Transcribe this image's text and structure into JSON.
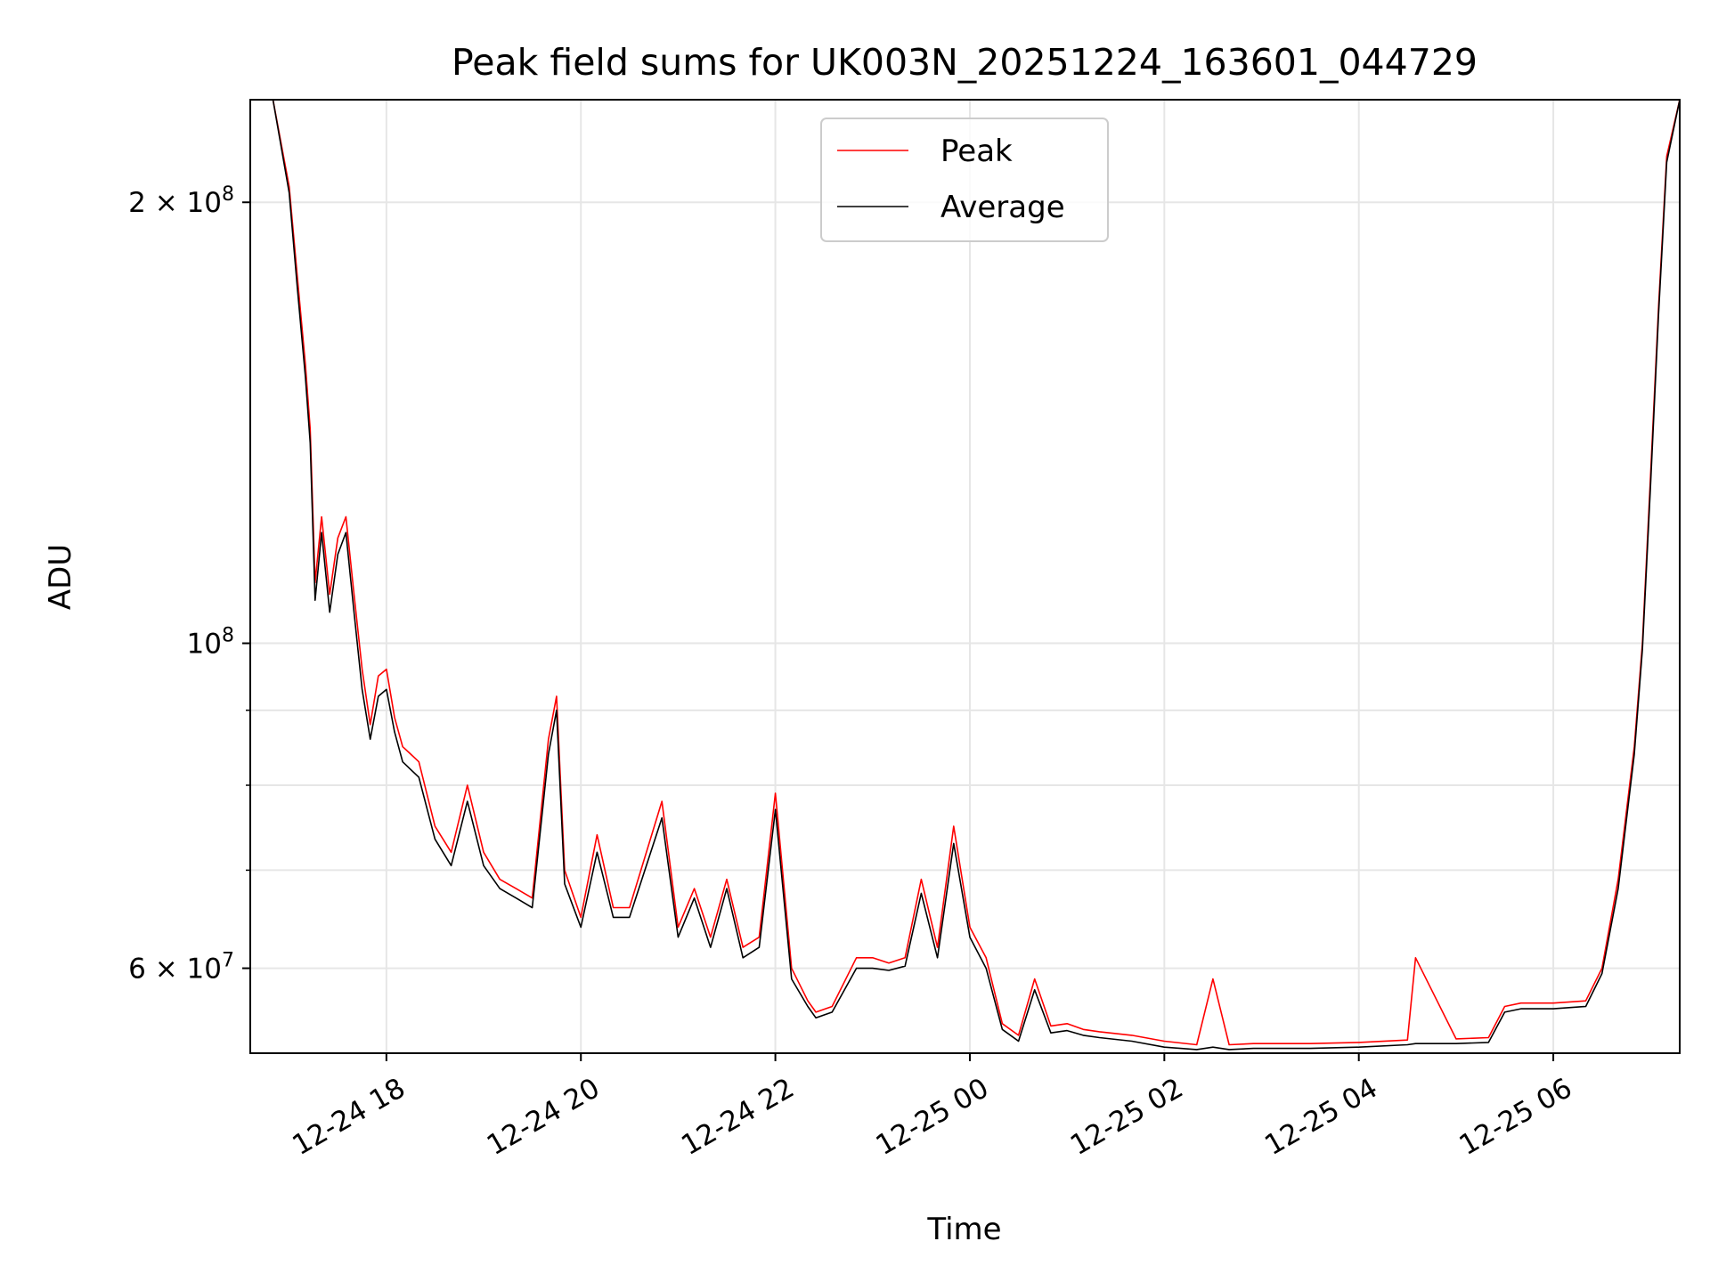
{
  "chart_data": {
    "type": "line",
    "title": "Peak field sums for UK003N_20251224_163601_044729",
    "xlabel": "Time",
    "ylabel": "ADU",
    "x_scale": "time",
    "y_scale": "log",
    "xlim": [
      "2025-12-24 16:36",
      "2025-12-25 07:18"
    ],
    "ylim": [
      52500000,
      235000000
    ],
    "grid": true,
    "legend_position": "upper-center",
    "x_ticks": [
      {
        "value": "2025-12-24 18:00",
        "label": "12-24 18"
      },
      {
        "value": "2025-12-24 20:00",
        "label": "12-24 20"
      },
      {
        "value": "2025-12-24 22:00",
        "label": "12-24 22"
      },
      {
        "value": "2025-12-25 00:00",
        "label": "12-25 00"
      },
      {
        "value": "2025-12-25 02:00",
        "label": "12-25 02"
      },
      {
        "value": "2025-12-25 04:00",
        "label": "12-25 04"
      },
      {
        "value": "2025-12-25 06:00",
        "label": "12-25 06"
      }
    ],
    "y_major_ticks": [
      {
        "value": 200000000,
        "mantissa": "2",
        "exponent": "8"
      },
      {
        "value": 100000000,
        "mantissa": "",
        "exponent": "8"
      },
      {
        "value": 60000000,
        "mantissa": "6",
        "exponent": "7"
      }
    ],
    "y_minor_ticks": [
      70000000,
      80000000,
      90000000
    ],
    "series": [
      {
        "name": "Peak",
        "color": "#ff0000",
        "x": [
          "2025-12-24 16:36",
          "2025-12-24 16:50",
          "2025-12-24 17:00",
          "2025-12-24 17:05",
          "2025-12-24 17:10",
          "2025-12-24 17:13",
          "2025-12-24 17:16",
          "2025-12-24 17:20",
          "2025-12-24 17:25",
          "2025-12-24 17:30",
          "2025-12-24 17:35",
          "2025-12-24 17:40",
          "2025-12-24 17:45",
          "2025-12-24 17:50",
          "2025-12-24 17:55",
          "2025-12-24 18:00",
          "2025-12-24 18:05",
          "2025-12-24 18:10",
          "2025-12-24 18:15",
          "2025-12-24 18:20",
          "2025-12-24 18:30",
          "2025-12-24 18:40",
          "2025-12-24 18:50",
          "2025-12-24 19:00",
          "2025-12-24 19:10",
          "2025-12-24 19:20",
          "2025-12-24 19:30",
          "2025-12-24 19:40",
          "2025-12-24 19:45",
          "2025-12-24 19:50",
          "2025-12-24 20:00",
          "2025-12-24 20:10",
          "2025-12-24 20:20",
          "2025-12-24 20:30",
          "2025-12-24 20:50",
          "2025-12-24 21:00",
          "2025-12-24 21:10",
          "2025-12-24 21:20",
          "2025-12-24 21:30",
          "2025-12-24 21:40",
          "2025-12-24 21:50",
          "2025-12-24 22:00",
          "2025-12-24 22:10",
          "2025-12-24 22:20",
          "2025-12-24 22:25",
          "2025-12-24 22:35",
          "2025-12-24 22:50",
          "2025-12-24 23:00",
          "2025-12-24 23:10",
          "2025-12-24 23:20",
          "2025-12-24 23:30",
          "2025-12-24 23:40",
          "2025-12-24 23:50",
          "2025-12-25 00:00",
          "2025-12-25 00:10",
          "2025-12-25 00:20",
          "2025-12-25 00:30",
          "2025-12-25 00:40",
          "2025-12-25 00:50",
          "2025-12-25 01:00",
          "2025-12-25 01:10",
          "2025-12-25 01:20",
          "2025-12-25 01:40",
          "2025-12-25 02:00",
          "2025-12-25 02:20",
          "2025-12-25 02:30",
          "2025-12-25 02:40",
          "2025-12-25 02:55",
          "2025-12-25 03:10",
          "2025-12-25 03:30",
          "2025-12-25 04:00",
          "2025-12-25 04:30",
          "2025-12-25 04:35",
          "2025-12-25 05:00",
          "2025-12-25 05:20",
          "2025-12-25 05:30",
          "2025-12-25 05:40",
          "2025-12-25 06:00",
          "2025-12-25 06:20",
          "2025-12-25 06:30",
          "2025-12-25 06:40",
          "2025-12-25 06:50",
          "2025-12-25 06:55",
          "2025-12-25 07:00",
          "2025-12-25 07:05",
          "2025-12-25 07:10",
          "2025-12-25 07:18"
        ],
        "y": [
          235000000,
          235000000,
          205000000,
          178000000,
          155000000,
          140000000,
          110000000,
          122000000,
          108000000,
          118000000,
          122000000,
          108000000,
          96000000,
          88000000,
          95000000,
          96000000,
          89000000,
          85000000,
          84000000,
          83000000,
          75000000,
          72000000,
          80000000,
          72000000,
          69000000,
          68000000,
          67000000,
          86000000,
          92000000,
          70000000,
          65000000,
          74000000,
          66000000,
          66000000,
          78000000,
          64000000,
          68000000,
          63000000,
          69000000,
          62000000,
          63000000,
          79000000,
          60000000,
          57000000,
          56000000,
          56500000,
          61000000,
          61000000,
          60500000,
          61000000,
          69000000,
          62000000,
          75000000,
          64000000,
          61000000,
          55000000,
          54000000,
          59000000,
          54800000,
          55000000,
          54500000,
          54300000,
          54000000,
          53500000,
          53200000,
          59000000,
          53200000,
          53300000,
          53300000,
          53300000,
          53400000,
          53600000,
          61000000,
          53700000,
          53800000,
          56500000,
          56800000,
          56800000,
          57000000,
          60000000,
          69000000,
          85000000,
          100000000,
          130000000,
          170000000,
          215000000,
          235000000
        ]
      },
      {
        "name": "Average",
        "color": "#000000",
        "x": [
          "2025-12-24 16:36",
          "2025-12-24 16:50",
          "2025-12-24 17:00",
          "2025-12-24 17:05",
          "2025-12-24 17:10",
          "2025-12-24 17:13",
          "2025-12-24 17:16",
          "2025-12-24 17:20",
          "2025-12-24 17:25",
          "2025-12-24 17:30",
          "2025-12-24 17:35",
          "2025-12-24 17:40",
          "2025-12-24 17:45",
          "2025-12-24 17:50",
          "2025-12-24 17:55",
          "2025-12-24 18:00",
          "2025-12-24 18:05",
          "2025-12-24 18:10",
          "2025-12-24 18:15",
          "2025-12-24 18:20",
          "2025-12-24 18:30",
          "2025-12-24 18:40",
          "2025-12-24 18:50",
          "2025-12-24 19:00",
          "2025-12-24 19:10",
          "2025-12-24 19:20",
          "2025-12-24 19:30",
          "2025-12-24 19:40",
          "2025-12-24 19:45",
          "2025-12-24 19:50",
          "2025-12-24 20:00",
          "2025-12-24 20:10",
          "2025-12-24 20:20",
          "2025-12-24 20:30",
          "2025-12-24 20:50",
          "2025-12-24 21:00",
          "2025-12-24 21:10",
          "2025-12-24 21:20",
          "2025-12-24 21:30",
          "2025-12-24 21:40",
          "2025-12-24 21:50",
          "2025-12-24 22:00",
          "2025-12-24 22:10",
          "2025-12-24 22:20",
          "2025-12-24 22:25",
          "2025-12-24 22:35",
          "2025-12-24 22:50",
          "2025-12-24 23:00",
          "2025-12-24 23:10",
          "2025-12-24 23:20",
          "2025-12-24 23:30",
          "2025-12-24 23:40",
          "2025-12-24 23:50",
          "2025-12-25 00:00",
          "2025-12-25 00:10",
          "2025-12-25 00:20",
          "2025-12-25 00:30",
          "2025-12-25 00:40",
          "2025-12-25 00:50",
          "2025-12-25 01:00",
          "2025-12-25 01:10",
          "2025-12-25 01:20",
          "2025-12-25 01:40",
          "2025-12-25 02:00",
          "2025-12-25 02:20",
          "2025-12-25 02:30",
          "2025-12-25 02:40",
          "2025-12-25 02:55",
          "2025-12-25 03:10",
          "2025-12-25 03:30",
          "2025-12-25 04:00",
          "2025-12-25 04:30",
          "2025-12-25 04:35",
          "2025-12-25 05:00",
          "2025-12-25 05:20",
          "2025-12-25 05:30",
          "2025-12-25 05:40",
          "2025-12-25 06:00",
          "2025-12-25 06:20",
          "2025-12-25 06:30",
          "2025-12-25 06:40",
          "2025-12-25 06:50",
          "2025-12-25 06:55",
          "2025-12-25 07:00",
          "2025-12-25 07:05",
          "2025-12-25 07:10",
          "2025-12-25 07:18"
        ],
        "y": [
          235000000,
          235000000,
          203000000,
          175000000,
          152000000,
          137000000,
          107000000,
          119000000,
          105000000,
          115000000,
          119000000,
          105000000,
          93000000,
          86000000,
          92000000,
          93000000,
          87000000,
          83000000,
          82000000,
          81000000,
          73500000,
          70500000,
          78000000,
          70500000,
          68000000,
          67000000,
          66000000,
          84000000,
          90000000,
          68500000,
          64000000,
          72000000,
          65000000,
          65000000,
          76000000,
          63000000,
          67000000,
          62000000,
          68000000,
          61000000,
          62000000,
          77000000,
          59000000,
          56500000,
          55500000,
          56000000,
          60000000,
          60000000,
          59800000,
          60200000,
          67500000,
          61000000,
          73000000,
          63000000,
          60000000,
          54500000,
          53500000,
          58000000,
          54200000,
          54400000,
          54000000,
          53800000,
          53500000,
          53000000,
          52800000,
          53000000,
          52800000,
          52900000,
          52900000,
          52900000,
          53000000,
          53200000,
          53300000,
          53300000,
          53400000,
          56000000,
          56300000,
          56300000,
          56500000,
          59500000,
          68000000,
          84000000,
          99000000,
          128000000,
          168000000,
          213000000,
          235000000
        ]
      }
    ]
  }
}
